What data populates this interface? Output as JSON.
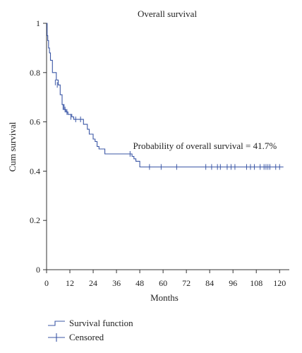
{
  "chart_data": {
    "type": "line",
    "title": "Overall survival",
    "xlabel": "Months",
    "ylabel": "Cum survival",
    "xlim": [
      0,
      125
    ],
    "ylim": [
      0,
      1
    ],
    "x_ticks": [
      0,
      12,
      24,
      36,
      48,
      60,
      72,
      84,
      96,
      108,
      120
    ],
    "y_ticks": [
      0,
      0.2,
      0.4,
      0.6,
      0.8,
      1
    ],
    "grid": false,
    "series": [
      {
        "name": "Survival function",
        "color": "#3b57a6",
        "step_x": [
          0,
          0.3,
          0.6,
          1,
          1.5,
          2,
          3,
          5,
          6,
          7,
          8,
          9,
          10,
          11,
          13,
          14,
          16,
          19,
          21,
          22,
          24,
          25,
          26,
          27,
          28,
          30,
          31,
          44,
          45,
          46,
          48,
          122
        ],
        "step_y": [
          1,
          0.95,
          0.93,
          0.9,
          0.88,
          0.85,
          0.8,
          0.77,
          0.75,
          0.71,
          0.67,
          0.65,
          0.64,
          0.63,
          0.62,
          0.61,
          0.61,
          0.59,
          0.57,
          0.55,
          0.53,
          0.52,
          0.5,
          0.49,
          0.49,
          0.47,
          0.47,
          0.46,
          0.45,
          0.44,
          0.417,
          0.417
        ]
      }
    ],
    "censored": {
      "name": "Censored",
      "x": [
        4.5,
        5.5,
        8.5,
        9.5,
        10.5,
        12.5,
        15,
        17.5,
        43,
        53,
        59,
        67,
        82,
        85,
        88,
        89.5,
        93,
        95,
        97,
        103,
        105,
        107,
        110,
        112,
        113,
        114,
        115,
        118,
        120
      ],
      "y": [
        0.76,
        0.75,
        0.66,
        0.65,
        0.64,
        0.62,
        0.61,
        0.61,
        0.47,
        0.417,
        0.417,
        0.417,
        0.417,
        0.417,
        0.417,
        0.417,
        0.417,
        0.417,
        0.417,
        0.417,
        0.417,
        0.417,
        0.417,
        0.417,
        0.417,
        0.417,
        0.417,
        0.417,
        0.417
      ]
    },
    "annotation": {
      "text": "Probability of overall survival = 41.7%",
      "x": 44.5,
      "y": 0.49
    },
    "legend": {
      "position": "bottom-left",
      "entries": [
        "Survival function",
        "Censored"
      ]
    }
  }
}
